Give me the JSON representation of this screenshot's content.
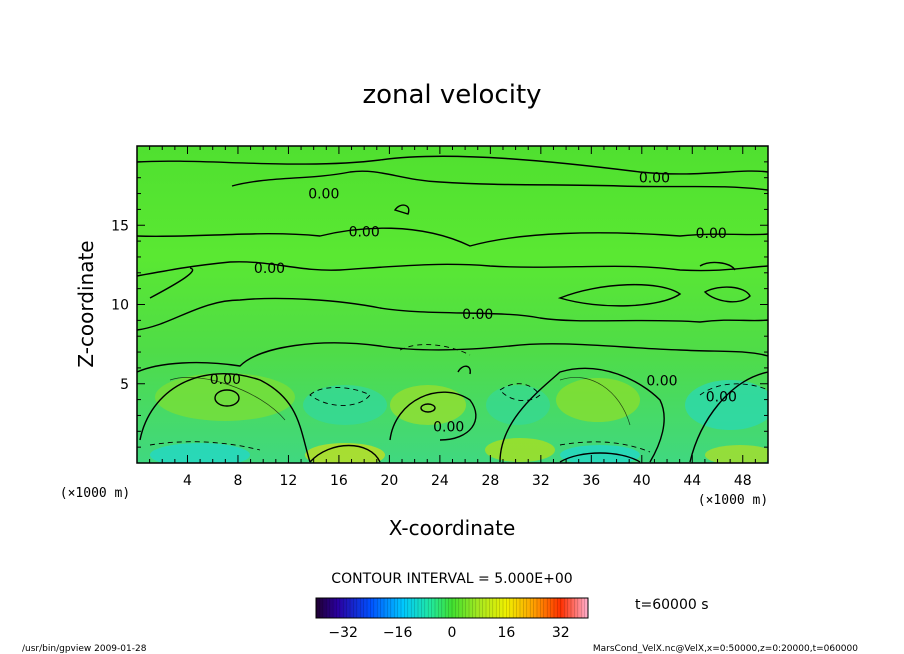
{
  "chart_data": {
    "type": "heatmap",
    "title": "zonal velocity",
    "xlabel": "X-coordinate",
    "ylabel": "Z-coordinate",
    "x_unit": "(×1000 m)",
    "y_unit": "(×1000 m)",
    "xlim": [
      0,
      50
    ],
    "ylim": [
      0,
      20
    ],
    "x_ticks": [
      4,
      8,
      12,
      16,
      20,
      24,
      28,
      32,
      36,
      40,
      44,
      48
    ],
    "y_ticks": [
      5,
      10,
      15
    ],
    "contour_interval_text": "CONTOUR INTERVAL = 5.000E+00",
    "contour_labels": [
      {
        "x": 14.8,
        "y": 17.0,
        "text": "0.00"
      },
      {
        "x": 18.0,
        "y": 14.6,
        "text": "0.00"
      },
      {
        "x": 41.0,
        "y": 18.0,
        "text": "0.00"
      },
      {
        "x": 45.5,
        "y": 14.5,
        "text": "0.00"
      },
      {
        "x": 10.5,
        "y": 12.3,
        "text": "0.00"
      },
      {
        "x": 27.0,
        "y": 9.4,
        "text": "0.00"
      },
      {
        "x": 7.0,
        "y": 5.3,
        "text": "0.00"
      },
      {
        "x": 41.6,
        "y": 5.2,
        "text": "0.00"
      },
      {
        "x": 46.3,
        "y": 4.2,
        "text": "0.00"
      },
      {
        "x": 24.7,
        "y": 2.3,
        "text": "0.00"
      }
    ],
    "colorbar": {
      "ticks": [
        -32,
        -16,
        0,
        16,
        32
      ],
      "range": [
        -40,
        40
      ]
    },
    "time_label": "t=60000 s"
  },
  "footer": {
    "left": "/usr/bin/gpview   2009-01-28",
    "right": "MarsCond_VelX.nc@VelX,x=0:50000,z=0:20000,t=060000"
  }
}
